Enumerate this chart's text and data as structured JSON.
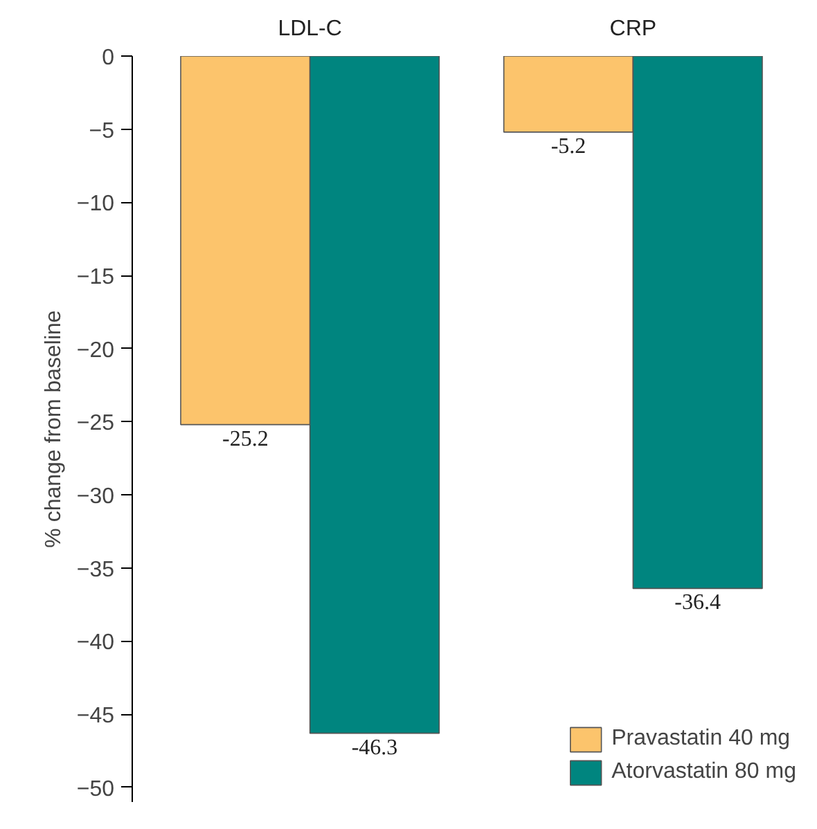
{
  "chart_data": {
    "type": "bar",
    "ylabel": "% change from baseline",
    "categories": [
      "LDL-C",
      "CRP"
    ],
    "series": [
      {
        "name": "Pravastatin 40 mg",
        "color": "#fcc46c",
        "values": [
          -25.2,
          -5.2
        ]
      },
      {
        "name": "Atorvastatin 80 mg",
        "color": "#00857f",
        "values": [
          -46.3,
          -36.4
        ]
      }
    ],
    "ylim": [
      -51,
      0
    ],
    "yticks": [
      0,
      -5,
      -10,
      -15,
      -20,
      -25,
      -30,
      -35,
      -40,
      -45,
      -50
    ],
    "data_labels": true,
    "grid": false,
    "legend": "bottom right"
  }
}
